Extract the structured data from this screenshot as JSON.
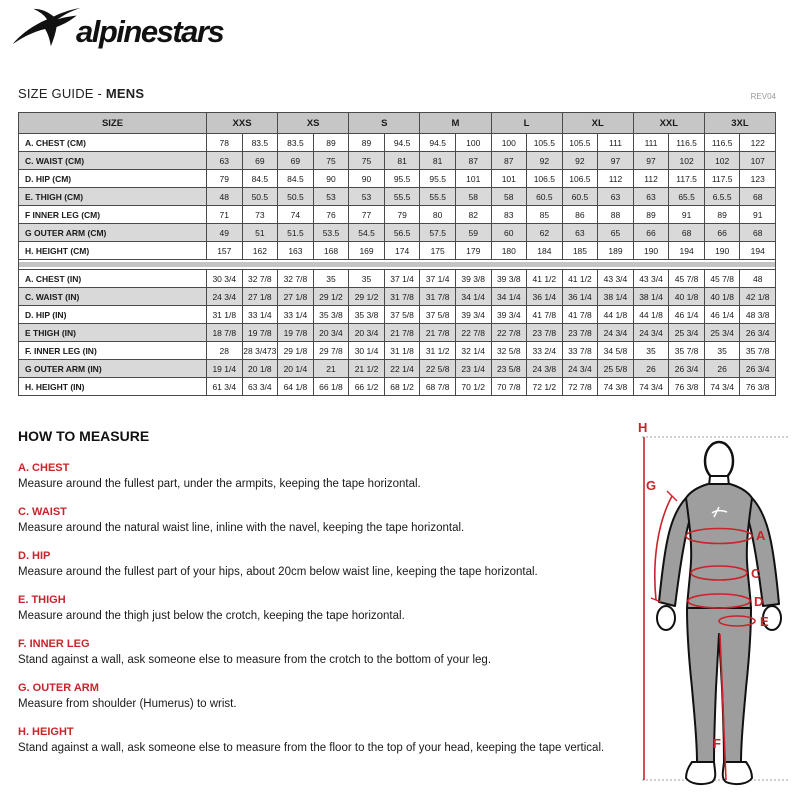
{
  "logo": {
    "brand": "alpinestars"
  },
  "header": {
    "title_prefix": "SIZE GUIDE - ",
    "title_bold": "MENS",
    "rev": "REV04"
  },
  "table": {
    "size_header": "SIZE",
    "sizes": [
      "XXS",
      "XS",
      "S",
      "M",
      "L",
      "XL",
      "XXL",
      "3XL"
    ],
    "rows_cm": [
      {
        "label": "A. CHEST (CM)",
        "values": [
          "78",
          "83.5",
          "83.5",
          "89",
          "89",
          "94.5",
          "94.5",
          "100",
          "100",
          "105.5",
          "105.5",
          "111",
          "111",
          "116.5",
          "116.5",
          "122"
        ]
      },
      {
        "label": "C. WAIST (CM)",
        "values": [
          "63",
          "69",
          "69",
          "75",
          "75",
          "81",
          "81",
          "87",
          "87",
          "92",
          "92",
          "97",
          "97",
          "102",
          "102",
          "107"
        ]
      },
      {
        "label": "D. HIP (CM)",
        "values": [
          "79",
          "84.5",
          "84.5",
          "90",
          "90",
          "95.5",
          "95.5",
          "101",
          "101",
          "106.5",
          "106.5",
          "112",
          "112",
          "117.5",
          "117.5",
          "123"
        ]
      },
      {
        "label": "E. THIGH (CM)",
        "values": [
          "48",
          "50.5",
          "50.5",
          "53",
          "53",
          "55.5",
          "55.5",
          "58",
          "58",
          "60.5",
          "60.5",
          "63",
          "63",
          "65.5",
          "6.5.5",
          "68"
        ]
      },
      {
        "label": "F INNER LEG (CM)",
        "values": [
          "71",
          "73",
          "74",
          "76",
          "77",
          "79",
          "80",
          "82",
          "83",
          "85",
          "86",
          "88",
          "89",
          "91",
          "89",
          "91"
        ]
      },
      {
        "label": "G OUTER ARM (CM)",
        "values": [
          "49",
          "51",
          "51.5",
          "53.5",
          "54.5",
          "56.5",
          "57.5",
          "59",
          "60",
          "62",
          "63",
          "65",
          "66",
          "68",
          "66",
          "68"
        ]
      },
      {
        "label": "H. HEIGHT (CM)",
        "values": [
          "157",
          "162",
          "163",
          "168",
          "169",
          "174",
          "175",
          "179",
          "180",
          "184",
          "185",
          "189",
          "190",
          "194",
          "190",
          "194"
        ]
      }
    ],
    "rows_in": [
      {
        "label": "A. CHEST (IN)",
        "values": [
          "30 3/4",
          "32 7/8",
          "32 7/8",
          "35",
          "35",
          "37 1/4",
          "37 1/4",
          "39 3/8",
          "39 3/8",
          "41 1/2",
          "41 1/2",
          "43 3/4",
          "43 3/4",
          "45 7/8",
          "45 7/8",
          "48"
        ]
      },
      {
        "label": "C. WAIST (IN)",
        "values": [
          "24 3/4",
          "27 1/8",
          "27 1/8",
          "29 1/2",
          "29 1/2",
          "31 7/8",
          "31 7/8",
          "34 1/4",
          "34 1/4",
          "36 1/4",
          "36 1/4",
          "38 1/4",
          "38 1/4",
          "40 1/8",
          "40 1/8",
          "42 1/8"
        ]
      },
      {
        "label": "D. HIP (IN)",
        "values": [
          "31 1/8",
          "33 1/4",
          "33 1/4",
          "35 3/8",
          "35 3/8",
          "37 5/8",
          "37 5/8",
          "39 3/4",
          "39 3/4",
          "41 7/8",
          "41 7/8",
          "44 1/8",
          "44 1/8",
          "46 1/4",
          "46 1/4",
          "48 3/8"
        ]
      },
      {
        "label": "E THIGH (IN)",
        "values": [
          "18 7/8",
          "19 7/8",
          "19 7/8",
          "20 3/4",
          "20 3/4",
          "21 7/8",
          "21 7/8",
          "22 7/8",
          "22 7/8",
          "23 7/8",
          "23 7/8",
          "24 3/4",
          "24 3/4",
          "25 3/4",
          "25 3/4",
          "26 3/4"
        ]
      },
      {
        "label": "F. INNER LEG (IN)",
        "values": [
          "28",
          "28 3/473",
          "29 1/8",
          "29 7/8",
          "30 1/4",
          "31 1/8",
          "31 1/2",
          "32 1/4",
          "32 5/8",
          "33 2/4",
          "33 7/8",
          "34 5/8",
          "35",
          "35 7/8",
          "35",
          "35 7/8"
        ]
      },
      {
        "label": "G OUTER ARM (IN)",
        "values": [
          "19 1/4",
          "20 1/8",
          "20 1/4",
          "21",
          "21 1/2",
          "22 1/4",
          "22 5/8",
          "23 1/4",
          "23 5/8",
          "24 3/8",
          "24 3/4",
          "25 5/8",
          "26",
          "26 3/4",
          "26",
          "26 3/4"
        ]
      },
      {
        "label": "H. HEIGHT (IN)",
        "values": [
          "61 3/4",
          "63 3/4",
          "64 1/8",
          "66 1/8",
          "66 1/2",
          "68 1/2",
          "68 7/8",
          "70 1/2",
          "70 7/8",
          "72 1/2",
          "72 7/8",
          "74 3/8",
          "74 3/4",
          "76 3/8",
          "74 3/4",
          "76 3/8"
        ]
      }
    ]
  },
  "how_to_measure": {
    "heading": "HOW TO MEASURE",
    "items": [
      {
        "label": "A. CHEST",
        "text": "Measure around the fullest part, under the armpits, keeping the tape horizontal."
      },
      {
        "label": "C. WAIST",
        "text": "Measure around the natural waist line, inline with the navel, keeping the tape horizontal."
      },
      {
        "label": "D. HIP",
        "text": "Measure around the fullest part of your hips, about 20cm below waist line, keeping the tape horizontal."
      },
      {
        "label": "E. THIGH",
        "text": "Measure around the thigh just below the crotch, keeping the tape horizontal."
      },
      {
        "label": "F. INNER LEG",
        "text": "Stand against a wall, ask someone else to measure from the crotch to the bottom of your leg."
      },
      {
        "label": "G. OUTER ARM",
        "text": "Measure from shoulder (Humerus) to wrist."
      },
      {
        "label": "H. HEIGHT",
        "text": "Stand against a wall, ask someone else to measure from the floor to the top of your head, keeping the tape vertical."
      }
    ]
  },
  "diagram": {
    "labels": {
      "A": "A",
      "C": "C",
      "D": "D",
      "E": "E",
      "F": "F",
      "G": "G",
      "H": "H"
    }
  },
  "colors": {
    "accent_red": "#c9242b",
    "table_header_bg": "#c6c6c6",
    "table_alt_row_bg": "#d9d9d9",
    "table_border": "#4a4a4a",
    "figure_body_gray": "#9e9e9e",
    "rev_text": "#999999"
  }
}
